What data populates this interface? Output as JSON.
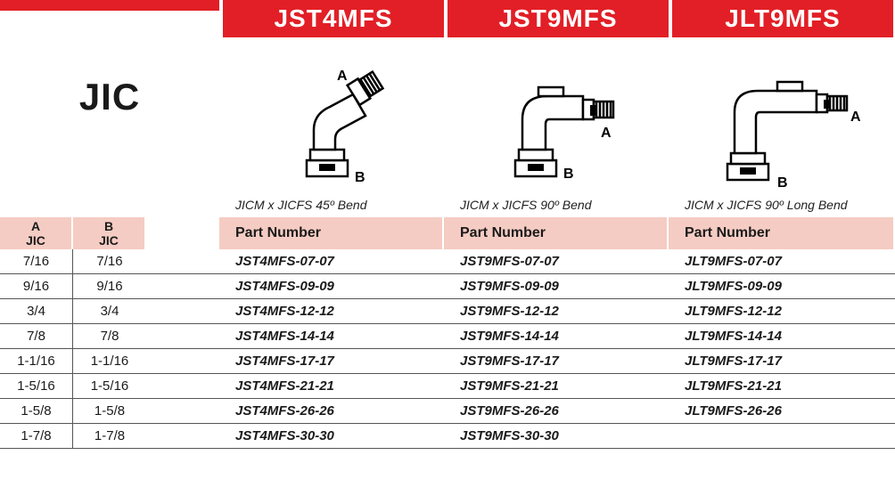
{
  "brand_label": "JIC",
  "colors": {
    "red": "#e21f26",
    "pink_header": "#f5ccc3",
    "text": "#1a1a1a",
    "rule": "#555555",
    "bg": "#ffffff"
  },
  "products": [
    {
      "code": "JST4MFS",
      "caption": "JICM x JICFS 45º Bend",
      "part_header": "Part Number"
    },
    {
      "code": "JST9MFS",
      "caption": "JICM x JICFS 90º Bend",
      "part_header": "Part Number"
    },
    {
      "code": "JLT9MFS",
      "caption": "JICM x JICFS 90º Long Bend",
      "part_header": "Part Number"
    }
  ],
  "dim_headers": {
    "a_top": "A",
    "a_bot": "JIC",
    "b_top": "B",
    "b_bot": "JIC"
  },
  "rows": [
    {
      "a": "7/16",
      "b": "7/16",
      "p1": "JST4MFS-07-07",
      "p2": "JST9MFS-07-07",
      "p3": "JLT9MFS-07-07"
    },
    {
      "a": "9/16",
      "b": "9/16",
      "p1": "JST4MFS-09-09",
      "p2": "JST9MFS-09-09",
      "p3": "JLT9MFS-09-09"
    },
    {
      "a": "3/4",
      "b": "3/4",
      "p1": "JST4MFS-12-12",
      "p2": "JST9MFS-12-12",
      "p3": "JLT9MFS-12-12"
    },
    {
      "a": "7/8",
      "b": "7/8",
      "p1": "JST4MFS-14-14",
      "p2": "JST9MFS-14-14",
      "p3": "JLT9MFS-14-14"
    },
    {
      "a": "1-1/16",
      "b": "1-1/16",
      "p1": "JST4MFS-17-17",
      "p2": "JST9MFS-17-17",
      "p3": "JLT9MFS-17-17"
    },
    {
      "a": "1-5/16",
      "b": "1-5/16",
      "p1": "JST4MFS-21-21",
      "p2": "JST9MFS-21-21",
      "p3": "JLT9MFS-21-21"
    },
    {
      "a": "1-5/8",
      "b": "1-5/8",
      "p1": "JST4MFS-26-26",
      "p2": "JST9MFS-26-26",
      "p3": "JLT9MFS-26-26"
    },
    {
      "a": "1-7/8",
      "b": "1-7/8",
      "p1": "JST4MFS-30-30",
      "p2": "JST9MFS-30-30",
      "p3": ""
    }
  ],
  "diagram_labels": {
    "A": "A",
    "B": "B"
  }
}
